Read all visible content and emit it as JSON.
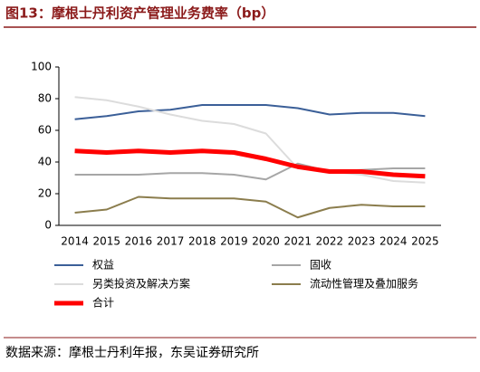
{
  "chart_data": {
    "type": "line",
    "title": "图13：摩根士丹利资产管理业务费率（bp）",
    "categories": [
      "2014",
      "2015",
      "2016",
      "2017",
      "2018",
      "2019",
      "2020",
      "2021",
      "2022",
      "2023",
      "2024",
      "2025"
    ],
    "series": [
      {
        "name": "权益",
        "color": "#3b5f98",
        "width": 2,
        "values": [
          67,
          69,
          72,
          73,
          76,
          76,
          76,
          74,
          70,
          71,
          71,
          69
        ]
      },
      {
        "name": "固收",
        "color": "#a6a6a6",
        "width": 2,
        "values": [
          32,
          32,
          32,
          33,
          33,
          32,
          29,
          39,
          34,
          35,
          36,
          36
        ]
      },
      {
        "name": "另类投资及解决方案",
        "color": "#dcdcdc",
        "width": 2,
        "values": [
          81,
          79,
          75,
          70,
          66,
          64,
          58,
          36,
          34,
          32,
          28,
          27
        ]
      },
      {
        "name": "流动性管理及叠加服务",
        "color": "#8b7d4d",
        "width": 2,
        "values": [
          8,
          10,
          18,
          17,
          17,
          17,
          15,
          5,
          11,
          13,
          12,
          12
        ]
      },
      {
        "name": "合计",
        "color": "#ff0000",
        "width": 5,
        "values": [
          47,
          46,
          47,
          46,
          47,
          46,
          42,
          37,
          34,
          34,
          32,
          31
        ]
      }
    ],
    "ylim": [
      0,
      100
    ],
    "yticks": [
      0,
      20,
      40,
      60,
      80,
      100
    ],
    "source": "数据来源：摩根士丹利年报，东吴证券研究所"
  }
}
